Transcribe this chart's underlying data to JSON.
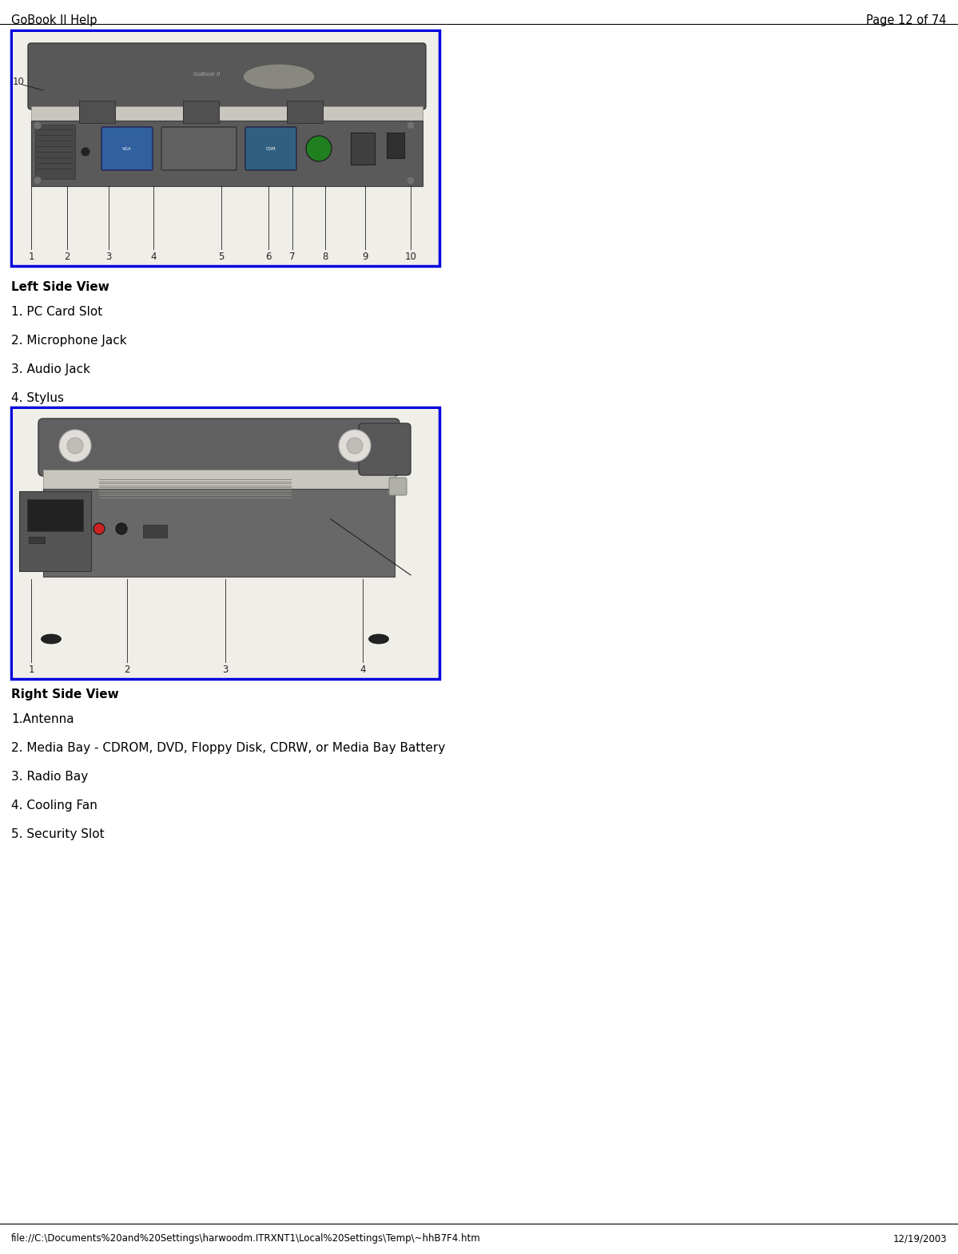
{
  "title_left": "GoBook II Help",
  "title_right": "Page 12 of 74",
  "header_font_size": 10.5,
  "body_font_size": 11,
  "bold_font_size": 11,
  "footer_text": "file://C:\\Documents%20and%20Settings\\harwoodm.ITRXNT1\\Local%20Settings\\Temp\\~hhB7F4.htm",
  "footer_date": "12/19/2003",
  "left_side_view_heading": "Left Side View",
  "left_side_items": [
    "1. PC Card Slot",
    "2. Microphone Jack",
    "3. Audio Jack",
    "4. Stylus"
  ],
  "right_side_view_heading": "Right Side View",
  "right_side_items": [
    "1.Antenna",
    "2. Media Bay - CDROM, DVD, Floppy Disk, CDRW, or Media Bay Battery",
    "3. Radio Bay",
    "4. Cooling Fan",
    "5. Security Slot"
  ],
  "bg_color": "#ffffff",
  "text_color": "#000000",
  "border_color": "#0000dd",
  "header_line_color": "#000000",
  "image_bg": "#f5f3ef",
  "laptop_gray": "#6e6e6e",
  "laptop_dark": "#4a4a4a",
  "laptop_medium": "#888888",
  "laptop_light_strip": "#b8b8b0",
  "laptop_silver": "#c8c6be"
}
